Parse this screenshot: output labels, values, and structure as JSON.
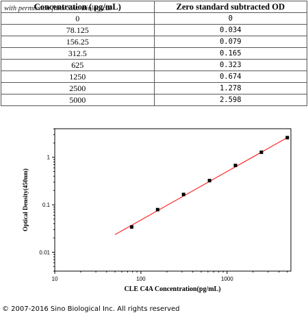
{
  "table": {
    "headers": [
      "Concentration ( pg/mL)",
      "Zero standard subtracted OD"
    ],
    "watermark": "with permission from Sino Biological",
    "rows": [
      [
        "0",
        "0"
      ],
      [
        "78.125",
        "0.034"
      ],
      [
        "156.25",
        "0.079"
      ],
      [
        "312.5",
        "0.165"
      ],
      [
        "625",
        "0.323"
      ],
      [
        "1250",
        "0.674"
      ],
      [
        "2500",
        "1.278"
      ],
      [
        "5000",
        "2.598"
      ]
    ]
  },
  "chart_data": {
    "type": "scatter",
    "title": "",
    "xlabel": "CLE C4A Concentration(pg/mL)",
    "ylabel": "Optical Density(450nm)",
    "xscale": "log",
    "yscale": "log",
    "xlim": [
      10,
      5500
    ],
    "ylim": [
      0.004,
      4
    ],
    "xticks": [
      "10",
      "100",
      "1000"
    ],
    "yticks": [
      "0.01",
      "0.1",
      "1"
    ],
    "grid": false,
    "series": [
      {
        "x": [
          78.125,
          156.25,
          312.5,
          625,
          1250,
          2500,
          5000
        ],
        "y": [
          0.034,
          0.079,
          0.165,
          0.323,
          0.674,
          1.278,
          2.598
        ]
      }
    ],
    "fit_line": {
      "x": [
        50,
        5000
      ],
      "y": [
        0.0235,
        2.6
      ]
    },
    "colors": {
      "points": "#000000",
      "fit": "#ff0000"
    }
  },
  "footer": {
    "copyright": "© 2007-2016 Sino Biological Inc. All rights reserved"
  }
}
